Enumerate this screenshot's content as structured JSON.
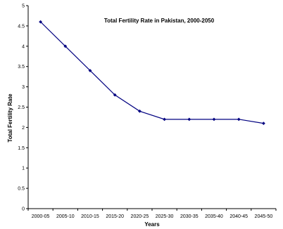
{
  "chart_data": {
    "type": "line",
    "title": "Total Fertility Rate in Pakistan, 2000-2050",
    "xlabel": "Years",
    "ylabel": "Total Fertility Rate",
    "categories": [
      "2000-05",
      "2005-10",
      "2010-15",
      "2015-20",
      "2020-25",
      "2025-30",
      "2030-35",
      "2035-40",
      "2040-45",
      "2045-50"
    ],
    "values": [
      4.6,
      4.0,
      3.4,
      2.8,
      2.4,
      2.2,
      2.2,
      2.2,
      2.2,
      2.1
    ],
    "ylim": [
      0,
      5
    ],
    "yticks": [
      "0",
      "0.5",
      "1",
      "1.5",
      "2",
      "2.5",
      "3",
      "3.5",
      "4",
      "4.5",
      "5"
    ],
    "grid": false,
    "legend": "none",
    "line_color": "#000080"
  }
}
